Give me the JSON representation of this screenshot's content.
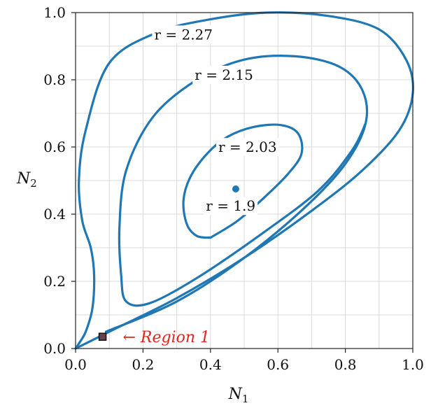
{
  "chart_data": {
    "type": "line",
    "xlabel": "N",
    "xlabel_sub": "1",
    "ylabel": "N",
    "ylabel_sub": "2",
    "xlim": [
      0.0,
      1.0
    ],
    "ylim": [
      0.0,
      1.0
    ],
    "xticks": [
      "0.0",
      "0.2",
      "0.4",
      "0.6",
      "0.8",
      "1.0"
    ],
    "yticks": [
      "0.0",
      "0.2",
      "0.4",
      "0.6",
      "0.8",
      "1.0"
    ],
    "grid": true,
    "grid_step": 0.1,
    "series_color": "#1f77b4",
    "series": [
      {
        "name": "r = 2.27",
        "label_text": "r = 2.27",
        "label_at": [
          0.32,
          0.92
        ],
        "points": [
          [
            0.0,
            0.0
          ],
          [
            0.04,
            0.02
          ],
          [
            0.12,
            0.06
          ],
          [
            0.3,
            0.15
          ],
          [
            0.5,
            0.27
          ],
          [
            0.7,
            0.41
          ],
          [
            0.85,
            0.53
          ],
          [
            0.96,
            0.65
          ],
          [
            1.0,
            0.76
          ],
          [
            0.98,
            0.86
          ],
          [
            0.9,
            0.95
          ],
          [
            0.75,
            0.99
          ],
          [
            0.57,
            1.0
          ],
          [
            0.4,
            0.98
          ],
          [
            0.24,
            0.94
          ],
          [
            0.1,
            0.85
          ],
          [
            0.03,
            0.65
          ],
          [
            0.01,
            0.5
          ],
          [
            0.02,
            0.38
          ],
          [
            0.045,
            0.3
          ],
          [
            0.055,
            0.22
          ],
          [
            0.05,
            0.12
          ],
          [
            0.03,
            0.05
          ],
          [
            0.01,
            0.015
          ],
          [
            0.0,
            0.0
          ]
        ]
      },
      {
        "name": "r = 2.15",
        "label_text": "r = 2.15",
        "label_at": [
          0.44,
          0.8
        ],
        "points": [
          [
            0.09,
            0.05
          ],
          [
            0.3,
            0.14
          ],
          [
            0.5,
            0.27
          ],
          [
            0.68,
            0.42
          ],
          [
            0.8,
            0.55
          ],
          [
            0.86,
            0.67
          ],
          [
            0.85,
            0.77
          ],
          [
            0.78,
            0.84
          ],
          [
            0.65,
            0.87
          ],
          [
            0.5,
            0.86
          ],
          [
            0.36,
            0.8
          ],
          [
            0.23,
            0.69
          ],
          [
            0.15,
            0.53
          ],
          [
            0.13,
            0.36
          ],
          [
            0.135,
            0.22
          ],
          [
            0.15,
            0.14
          ],
          [
            0.22,
            0.135
          ],
          [
            0.36,
            0.21
          ],
          [
            0.55,
            0.34
          ],
          [
            0.72,
            0.47
          ],
          [
            0.82,
            0.59
          ],
          [
            0.86,
            0.67
          ]
        ]
      },
      {
        "name": "r = 2.03",
        "label_text": "r = 2.03",
        "label_at": [
          0.51,
          0.585
        ],
        "points": [
          [
            0.4,
            0.33
          ],
          [
            0.48,
            0.38
          ],
          [
            0.56,
            0.45
          ],
          [
            0.63,
            0.52
          ],
          [
            0.67,
            0.58
          ],
          [
            0.66,
            0.64
          ],
          [
            0.61,
            0.665
          ],
          [
            0.53,
            0.66
          ],
          [
            0.45,
            0.63
          ],
          [
            0.39,
            0.58
          ],
          [
            0.34,
            0.51
          ],
          [
            0.32,
            0.44
          ],
          [
            0.33,
            0.37
          ],
          [
            0.36,
            0.335
          ],
          [
            0.4,
            0.33
          ]
        ]
      },
      {
        "name": "r = 1.9",
        "label_text": "r = 1.9",
        "type": "point",
        "label_at": [
          0.46,
          0.41
        ],
        "point": [
          0.475,
          0.475
        ]
      }
    ],
    "annotation": {
      "text": "← Region 1",
      "color": "#e2261f",
      "box": [
        0.08,
        0.035
      ],
      "text_at": [
        0.14,
        0.035
      ]
    }
  }
}
